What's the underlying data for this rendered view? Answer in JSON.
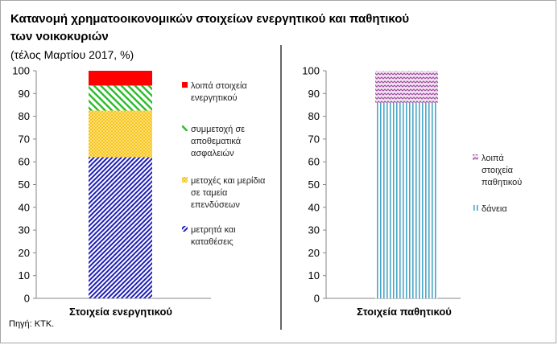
{
  "title_line1": "Κατανομή χρηματοοικονομικών  στοιχείων ενεργητικού και παθητικού",
  "title_line2": "των νοικοκυριών",
  "subtitle": "(τέλος Μαρτίου 2017, %)",
  "source": "Πηγή: ΚΤΚ.",
  "colors": {
    "cash": "#1f1fb8",
    "funds": "#ffd13b",
    "insurance": "#2fbd2f",
    "other_assets": "#ff0000",
    "loans": "#49a7c6",
    "other_liabilities": "#a04ea0"
  },
  "chart_data": [
    {
      "type": "bar",
      "stacked": true,
      "categories": [
        "Στοιχεία ενεργητικού"
      ],
      "ylim": [
        0,
        100
      ],
      "yticks": [
        "0",
        "10",
        "20",
        "30",
        "40",
        "50",
        "60",
        "70",
        "80",
        "90",
        "100"
      ],
      "legend_position": "right",
      "series": [
        {
          "name_lines": [
            "μετρητά και",
            "καταθέσεις"
          ],
          "values": [
            62
          ],
          "pattern": "diagonal-dense",
          "color_key": "cash"
        },
        {
          "name_lines": [
            "μετοχές και μερίδια",
            "σε ταμεία",
            "επενδύσεων"
          ],
          "values": [
            20.5
          ],
          "pattern": "dots",
          "color_key": "funds"
        },
        {
          "name_lines": [
            "συμμετοχή σε",
            "αποθεματικά",
            "ασφαλειών"
          ],
          "values": [
            11
          ],
          "pattern": "diagonal",
          "color_key": "insurance"
        },
        {
          "name_lines": [
            "λοιπά στοιχεία",
            "ενεργητικού"
          ],
          "values": [
            6.5
          ],
          "pattern": "solid",
          "color_key": "other_assets"
        }
      ]
    },
    {
      "type": "bar",
      "stacked": true,
      "categories": [
        "Στοιχεία παθητικού"
      ],
      "ylim": [
        0,
        100
      ],
      "yticks": [
        "0",
        "10",
        "20",
        "30",
        "40",
        "50",
        "60",
        "70",
        "80",
        "90",
        "100"
      ],
      "legend_position": "right",
      "series": [
        {
          "name_lines": [
            "δάνεια"
          ],
          "values": [
            86
          ],
          "pattern": "vertical",
          "color_key": "loans"
        },
        {
          "name_lines": [
            "λοιπά",
            "στοιχεία",
            "παθητικού"
          ],
          "values": [
            14
          ],
          "pattern": "zigzag",
          "color_key": "other_liabilities"
        }
      ]
    }
  ]
}
